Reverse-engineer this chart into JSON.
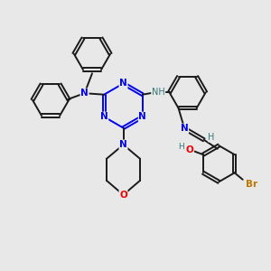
{
  "bg_color": "#e8e8e8",
  "bond_color": "#1a1a1a",
  "N_color": "#0000ee",
  "O_color": "#ee0000",
  "Br_color": "#bb7700",
  "NH_color": "#337777",
  "bond_width": 1.4,
  "figsize": [
    3.0,
    3.0
  ],
  "dpi": 100,
  "xlim": [
    0,
    10
  ],
  "ylim": [
    0,
    10
  ]
}
